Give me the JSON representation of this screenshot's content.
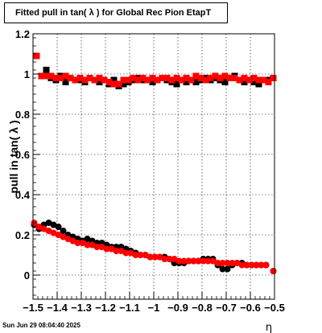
{
  "chart_data": {
    "type": "scatter",
    "title": "Fitted pull in tan( λ ) for Global Rec Pion EtapT",
    "ylabel": "pull in tan( λ )",
    "xlabel": "η",
    "xlim": [
      -1.5,
      -0.5
    ],
    "ylim": [
      -0.12,
      1.2
    ],
    "grid": true,
    "xticks": [
      -1.5,
      -1.4,
      -1.3,
      -1.2,
      -1.1,
      -1,
      -0.9,
      -0.8,
      -0.7,
      -0.6,
      -0.5
    ],
    "xtick_labels": [
      "−1.5",
      "−1.4",
      "−1.3",
      "−1.2",
      "−1.1",
      "−1",
      "−0.9",
      "−0.8",
      "−0.7",
      "−0.6",
      "−0.5"
    ],
    "yticks": [
      0,
      0.2,
      0.4,
      0.6,
      0.8,
      1,
      1.2
    ],
    "ytick_labels": [
      "0",
      "0.2",
      "0.4",
      "0.6",
      "0.8",
      "1",
      "1.2"
    ],
    "series": [
      {
        "marker": "square",
        "color": "#000000",
        "x": [
          -1.485,
          -1.465,
          -1.445,
          -1.425,
          -1.405,
          -1.385,
          -1.365,
          -1.345,
          -1.325,
          -1.305,
          -1.285,
          -1.265,
          -1.245,
          -1.225,
          -1.205,
          -1.185,
          -1.165,
          -1.145,
          -1.125,
          -1.105,
          -1.085,
          -1.065,
          -1.045,
          -1.025,
          -1.005,
          -0.985,
          -0.965,
          -0.945,
          -0.925,
          -0.905,
          -0.885,
          -0.865,
          -0.845,
          -0.825,
          -0.805,
          -0.785,
          -0.765,
          -0.745,
          -0.725,
          -0.705,
          -0.685,
          -0.665,
          -0.645,
          -0.625,
          -0.605,
          -0.585,
          -0.565,
          -0.545,
          -0.525,
          -0.505
        ],
        "y": [
          1.09,
          0.99,
          1.02,
          0.98,
          0.97,
          0.99,
          0.96,
          0.98,
          0.97,
          0.97,
          0.96,
          0.98,
          0.97,
          0.96,
          0.97,
          0.95,
          0.97,
          0.94,
          0.95,
          0.96,
          0.97,
          0.98,
          0.97,
          0.97,
          0.96,
          0.97,
          0.98,
          0.97,
          0.96,
          0.95,
          0.97,
          0.96,
          0.97,
          0.96,
          0.97,
          0.98,
          0.97,
          0.98,
          0.97,
          0.96,
          0.98,
          0.99,
          0.97,
          0.96,
          0.97,
          0.96,
          0.95,
          0.97,
          0.97,
          0.98
        ]
      },
      {
        "marker": "square",
        "color": "#ff0000",
        "x": [
          -1.485,
          -1.465,
          -1.445,
          -1.425,
          -1.405,
          -1.385,
          -1.365,
          -1.345,
          -1.325,
          -1.305,
          -1.285,
          -1.265,
          -1.245,
          -1.225,
          -1.205,
          -1.185,
          -1.165,
          -1.145,
          -1.125,
          -1.105,
          -1.085,
          -1.065,
          -1.045,
          -1.025,
          -1.005,
          -0.985,
          -0.965,
          -0.945,
          -0.925,
          -0.905,
          -0.885,
          -0.865,
          -0.845,
          -0.825,
          -0.805,
          -0.785,
          -0.765,
          -0.745,
          -0.725,
          -0.705,
          -0.685,
          -0.665,
          -0.645,
          -0.625,
          -0.605,
          -0.585,
          -0.565,
          -0.545,
          -0.525,
          -0.505
        ],
        "y": [
          1.09,
          0.99,
          0.99,
          0.99,
          0.98,
          0.98,
          0.99,
          0.98,
          0.97,
          0.98,
          0.97,
          0.98,
          0.97,
          0.98,
          0.97,
          0.96,
          0.95,
          0.95,
          0.97,
          0.97,
          0.98,
          0.97,
          0.98,
          0.97,
          0.98,
          0.97,
          0.98,
          0.98,
          0.97,
          0.98,
          0.97,
          0.98,
          0.97,
          0.99,
          0.98,
          0.97,
          0.98,
          0.99,
          0.98,
          0.99,
          0.98,
          0.98,
          0.97,
          0.98,
          0.97,
          0.98,
          0.97,
          0.97,
          0.96,
          0.98
        ]
      },
      {
        "marker": "circle",
        "color": "#000000",
        "x": [
          -1.495,
          -1.475,
          -1.455,
          -1.435,
          -1.415,
          -1.395,
          -1.375,
          -1.355,
          -1.335,
          -1.315,
          -1.295,
          -1.275,
          -1.255,
          -1.235,
          -1.215,
          -1.195,
          -1.175,
          -1.155,
          -1.135,
          -1.115,
          -1.095,
          -1.075,
          -1.055,
          -1.035,
          -1.015,
          -0.995,
          -0.975,
          -0.955,
          -0.935,
          -0.915,
          -0.895,
          -0.875,
          -0.855,
          -0.835,
          -0.815,
          -0.795,
          -0.775,
          -0.755,
          -0.735,
          -0.715,
          -0.695,
          -0.675,
          -0.655,
          -0.635,
          -0.615,
          -0.595,
          -0.575,
          -0.555,
          -0.535,
          -0.505
        ],
        "y": [
          0.25,
          0.23,
          0.25,
          0.26,
          0.25,
          0.24,
          0.22,
          0.2,
          0.19,
          0.18,
          0.17,
          0.18,
          0.17,
          0.16,
          0.16,
          0.15,
          0.14,
          0.14,
          0.14,
          0.13,
          0.12,
          0.11,
          0.1,
          0.1,
          0.09,
          0.09,
          0.09,
          0.09,
          0.08,
          0.06,
          0.06,
          0.06,
          0.07,
          0.07,
          0.07,
          0.08,
          0.08,
          0.08,
          0.05,
          0.03,
          0.03,
          0.05,
          0.06,
          0.06,
          0.05,
          0.05,
          0.05,
          0.05,
          0.05,
          0.02
        ]
      },
      {
        "marker": "circle",
        "color": "#ff0000",
        "x": [
          -1.495,
          -1.475,
          -1.455,
          -1.435,
          -1.415,
          -1.395,
          -1.375,
          -1.355,
          -1.335,
          -1.315,
          -1.295,
          -1.275,
          -1.255,
          -1.235,
          -1.215,
          -1.195,
          -1.175,
          -1.155,
          -1.135,
          -1.115,
          -1.095,
          -1.075,
          -1.055,
          -1.035,
          -1.015,
          -0.995,
          -0.975,
          -0.955,
          -0.935,
          -0.915,
          -0.895,
          -0.875,
          -0.855,
          -0.835,
          -0.815,
          -0.795,
          -0.775,
          -0.755,
          -0.735,
          -0.715,
          -0.695,
          -0.675,
          -0.655,
          -0.635,
          -0.615,
          -0.595,
          -0.575,
          -0.555,
          -0.535,
          -0.505
        ],
        "y": [
          0.26,
          0.24,
          0.23,
          0.22,
          0.21,
          0.2,
          0.19,
          0.18,
          0.17,
          0.16,
          0.16,
          0.15,
          0.15,
          0.14,
          0.14,
          0.13,
          0.13,
          0.12,
          0.12,
          0.11,
          0.11,
          0.1,
          0.1,
          0.1,
          0.09,
          0.09,
          0.09,
          0.08,
          0.08,
          0.08,
          0.07,
          0.07,
          0.07,
          0.07,
          0.07,
          0.07,
          0.07,
          0.07,
          0.06,
          0.06,
          0.06,
          0.06,
          0.06,
          0.05,
          0.05,
          0.05,
          0.05,
          0.05,
          0.05,
          0.02
        ]
      }
    ]
  },
  "footer": {
    "timestamp": "Sun Jun 29 08:04:40 2025"
  }
}
